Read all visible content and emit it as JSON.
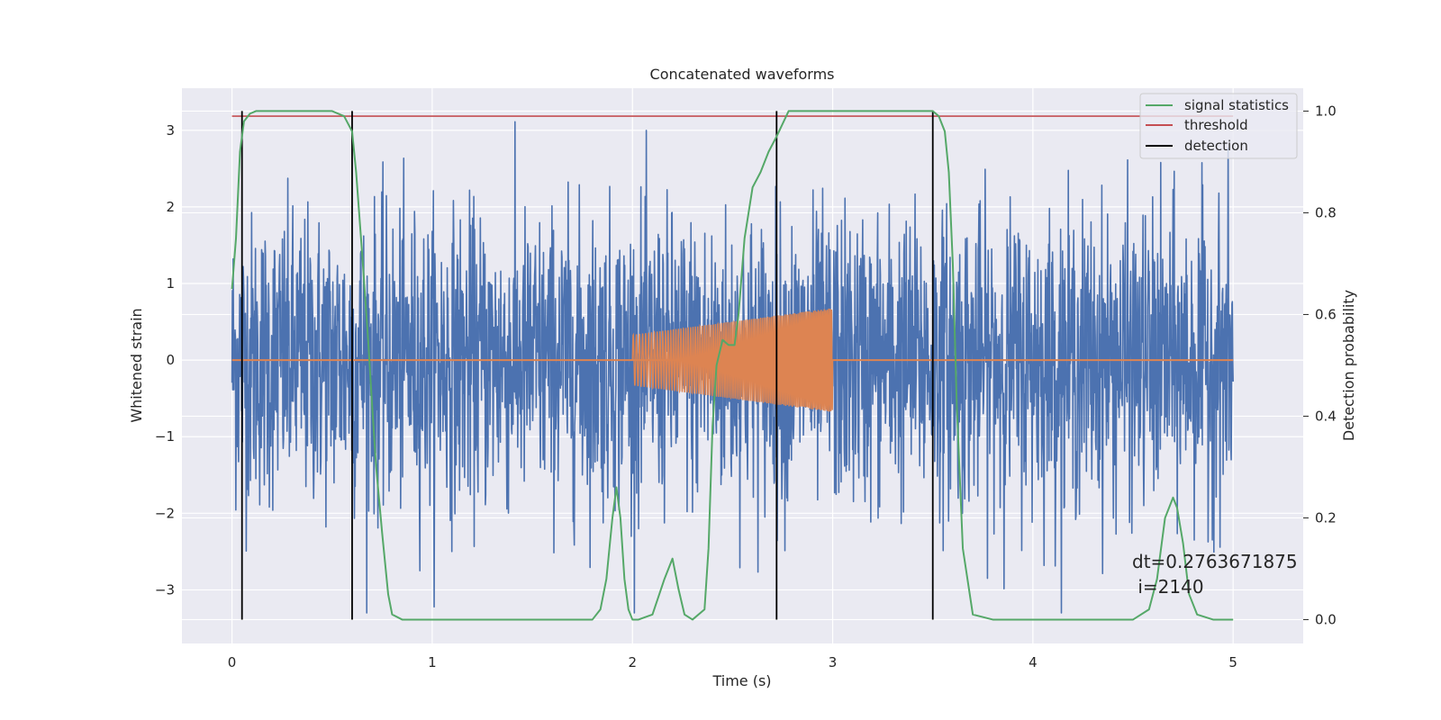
{
  "chart_data": {
    "type": "line",
    "title": "Concatenated waveforms",
    "xlabel": "Time (s)",
    "ylabel": "Whitened strain",
    "y2label": "Detection probability",
    "xlim": [
      -0.25,
      5.35
    ],
    "ylim": [
      -3.7,
      3.55
    ],
    "y2lim": [
      -0.047,
      1.045
    ],
    "xticks": [
      0,
      1,
      2,
      3,
      4,
      5
    ],
    "yticks": [
      -3,
      -2,
      -1,
      0,
      1,
      2,
      3
    ],
    "y2ticks": [
      0.0,
      0.2,
      0.4,
      0.6,
      0.8,
      1.0
    ],
    "xtick_labels": [
      "0",
      "1",
      "2",
      "3",
      "4",
      "5"
    ],
    "ytick_labels": [
      "−3",
      "−2",
      "−1",
      "0",
      "1",
      "2",
      "3"
    ],
    "y2tick_labels": [
      "0.0",
      "0.2",
      "0.4",
      "0.6",
      "0.8",
      "1.0"
    ],
    "grid": true,
    "legend_position": "top-right",
    "series": [
      {
        "name": "",
        "kind": "noise",
        "axis": "left",
        "color": "#4c72b0",
        "x_start": 0,
        "x_end": 5,
        "envelope_typical": 2.0,
        "envelope_max": 3.3
      },
      {
        "name": "",
        "kind": "chirp",
        "axis": "left",
        "color": "#dd8452",
        "x_start": 2.0,
        "x_end": 3.0,
        "amp_start": 0.33,
        "amp_end": 0.68,
        "baseline_x": [
          0,
          5
        ],
        "baseline_y": 0
      },
      {
        "name": "signal statistics",
        "kind": "line",
        "axis": "right",
        "color": "#55a868",
        "x": [
          0.0,
          0.02,
          0.04,
          0.06,
          0.09,
          0.12,
          0.2,
          0.5,
          0.56,
          0.6,
          0.62,
          0.65,
          0.68,
          0.7,
          0.72,
          0.75,
          0.78,
          0.8,
          0.85,
          1.0,
          1.5,
          1.8,
          1.84,
          1.87,
          1.9,
          1.92,
          1.94,
          1.96,
          1.98,
          2.0,
          2.03,
          2.1,
          2.16,
          2.2,
          2.23,
          2.26,
          2.3,
          2.36,
          2.38,
          2.4,
          2.42,
          2.45,
          2.48,
          2.51,
          2.53,
          2.56,
          2.6,
          2.64,
          2.68,
          2.72,
          2.78,
          2.85,
          3.0,
          3.5,
          3.53,
          3.56,
          3.58,
          3.6,
          3.62,
          3.65,
          3.7,
          3.8,
          4.0,
          4.5,
          4.58,
          4.62,
          4.66,
          4.7,
          4.72,
          4.75,
          4.78,
          4.82,
          4.9,
          5.0
        ],
        "y": [
          0.65,
          0.75,
          0.92,
          0.98,
          0.995,
          1.0,
          1.0,
          1.0,
          0.99,
          0.96,
          0.88,
          0.72,
          0.55,
          0.42,
          0.3,
          0.17,
          0.05,
          0.01,
          0.0,
          0.0,
          0.0,
          0.0,
          0.02,
          0.08,
          0.2,
          0.26,
          0.2,
          0.08,
          0.02,
          0.0,
          0.0,
          0.01,
          0.08,
          0.12,
          0.06,
          0.01,
          0.0,
          0.02,
          0.14,
          0.38,
          0.5,
          0.55,
          0.54,
          0.54,
          0.6,
          0.75,
          0.85,
          0.88,
          0.92,
          0.95,
          1.0,
          1.0,
          1.0,
          1.0,
          0.99,
          0.96,
          0.88,
          0.7,
          0.42,
          0.14,
          0.01,
          0.0,
          0.0,
          0.0,
          0.02,
          0.08,
          0.2,
          0.24,
          0.22,
          0.15,
          0.05,
          0.01,
          0.0,
          0.0
        ]
      },
      {
        "name": "threshold",
        "kind": "hline",
        "axis": "right",
        "color": "#c44e52",
        "x": [
          0,
          5
        ],
        "y": 0.99
      },
      {
        "name": "detection",
        "kind": "vlines",
        "axis": "right",
        "color": "#000000",
        "x": [
          0.05,
          0.6,
          2.72,
          3.5
        ],
        "y_range": [
          0,
          1.0
        ]
      }
    ],
    "annotations": [
      {
        "id": "dt",
        "text": "dt=0.2763671875"
      },
      {
        "id": "i",
        "text": " i=2140"
      }
    ]
  },
  "colors": {
    "background": "#ffffff",
    "plot_background": "#eaeaf2",
    "grid": "#ffffff",
    "text": "#262626"
  }
}
